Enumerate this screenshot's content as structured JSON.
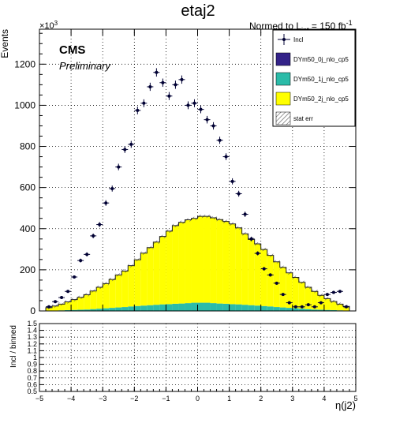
{
  "chart_data": [
    {
      "type": "histogram",
      "title": "etaj2",
      "lumi_label": "Normed to L",
      "lumi_sub": "int",
      "lumi_value": " = 150 fb",
      "lumi_exp": "-1",
      "ylabel": "Events",
      "exponent_label": "×10",
      "exponent_power": "3",
      "cms_label": "CMS",
      "preliminary_label": "Preliminary",
      "xlim": [
        -5,
        5
      ],
      "ylim": [
        0,
        1370
      ],
      "y_ticks": [
        0,
        200,
        400,
        600,
        800,
        1000,
        1200
      ],
      "y_tick_labels": [
        "0",
        "200",
        "400",
        "600",
        "800",
        "1000",
        "1200"
      ],
      "grid": true,
      "legend_position": "top-right",
      "legend": [
        {
          "label": "Incl",
          "kind": "marker",
          "color": "#000033"
        },
        {
          "label": "DYm50_0j_nlo_cp5",
          "kind": "fill",
          "color": "#332288"
        },
        {
          "label": "DYm50_1j_nlo_cp5",
          "kind": "fill",
          "color": "#2bbba8"
        },
        {
          "label": "DYm50_2j_nlo_cp5",
          "kind": "fill",
          "color": "#ffff00"
        },
        {
          "label": "stat err",
          "kind": "hatch",
          "color": "#555555"
        }
      ],
      "bin_edges_range": [
        -4.8,
        4.8
      ],
      "bins": 48,
      "series": [
        {
          "name": "DYm50_0j_nlo_cp5",
          "values": [
            0,
            0,
            0,
            0,
            0,
            0,
            0,
            0,
            0,
            0,
            0,
            0,
            0,
            0,
            0,
            0,
            0,
            0,
            0,
            0,
            0,
            0,
            0,
            0,
            0,
            0,
            0,
            0,
            0,
            0,
            0,
            0,
            0,
            0,
            0,
            0,
            0,
            0,
            0,
            0,
            0,
            0,
            0,
            0,
            0,
            0,
            0,
            0
          ]
        },
        {
          "name": "DYm50_1j_nlo_cp5",
          "values": [
            1,
            2,
            3,
            4,
            5,
            6,
            7,
            9,
            11,
            13,
            15,
            17,
            19,
            22,
            24,
            26,
            28,
            30,
            32,
            33,
            35,
            36,
            38,
            40,
            40,
            40,
            38,
            36,
            35,
            33,
            32,
            30,
            28,
            26,
            24,
            22,
            19,
            17,
            15,
            13,
            11,
            9,
            7,
            6,
            5,
            4,
            3,
            2
          ]
        },
        {
          "name": "DYm50_2j_nlo_cp5",
          "values": [
            15,
            22,
            30,
            40,
            50,
            60,
            72,
            88,
            104,
            120,
            138,
            158,
            175,
            198,
            225,
            255,
            280,
            305,
            330,
            355,
            380,
            395,
            405,
            410,
            420,
            420,
            415,
            408,
            400,
            390,
            372,
            345,
            320,
            300,
            275,
            248,
            220,
            195,
            170,
            150,
            128,
            106,
            88,
            70,
            55,
            42,
            30,
            20
          ]
        },
        {
          "name": "Incl",
          "x": [
            -4.7,
            -4.5,
            -4.3,
            -4.1,
            -3.9,
            -3.7,
            -3.5,
            -3.3,
            -3.1,
            -2.9,
            -2.7,
            -2.5,
            -2.3,
            -2.1,
            -1.9,
            -1.7,
            -1.5,
            -1.3,
            -1.1,
            -0.9,
            -0.7,
            -0.5,
            -0.3,
            -0.1,
            0.1,
            0.3,
            0.5,
            0.7,
            0.9,
            1.1,
            1.3,
            1.5,
            1.7,
            1.9,
            2.1,
            2.3,
            2.5,
            2.7,
            2.9,
            3.1,
            3.3,
            3.5,
            3.7,
            3.9,
            4.1,
            4.3,
            4.5,
            4.7
          ],
          "values": [
            20,
            45,
            65,
            95,
            165,
            245,
            275,
            365,
            420,
            525,
            595,
            700,
            785,
            810,
            975,
            1010,
            1090,
            1160,
            1110,
            1045,
            1100,
            1125,
            1000,
            1010,
            980,
            930,
            900,
            830,
            750,
            630,
            570,
            470,
            350,
            280,
            205,
            175,
            135,
            80,
            40,
            20,
            20,
            30,
            20,
            40,
            80,
            90,
            95,
            20
          ]
        }
      ]
    },
    {
      "type": "ratio",
      "ylabel": "Incl / binned",
      "xlabel": "η(j2)",
      "xlim": [
        -5,
        5
      ],
      "ylim": [
        0.5,
        1.5
      ],
      "x_ticks": [
        -5,
        -4,
        -3,
        -2,
        -1,
        0,
        1,
        2,
        3,
        4,
        5
      ],
      "x_tick_labels": [
        "−5",
        "−4",
        "−3",
        "−2",
        "−1",
        "0",
        "1",
        "2",
        "3",
        "4",
        "5"
      ],
      "y_ticks": [
        0.5,
        0.6,
        0.7,
        0.8,
        0.9,
        1,
        1.1,
        1.2,
        1.3,
        1.4,
        1.5
      ],
      "y_tick_labels": [
        "0.5",
        "0.6",
        "0.7",
        "0.8",
        "0.9",
        "1",
        "1.1",
        "1.2",
        "1.3",
        "1.4",
        "1.5"
      ],
      "grid": true,
      "values": []
    }
  ]
}
